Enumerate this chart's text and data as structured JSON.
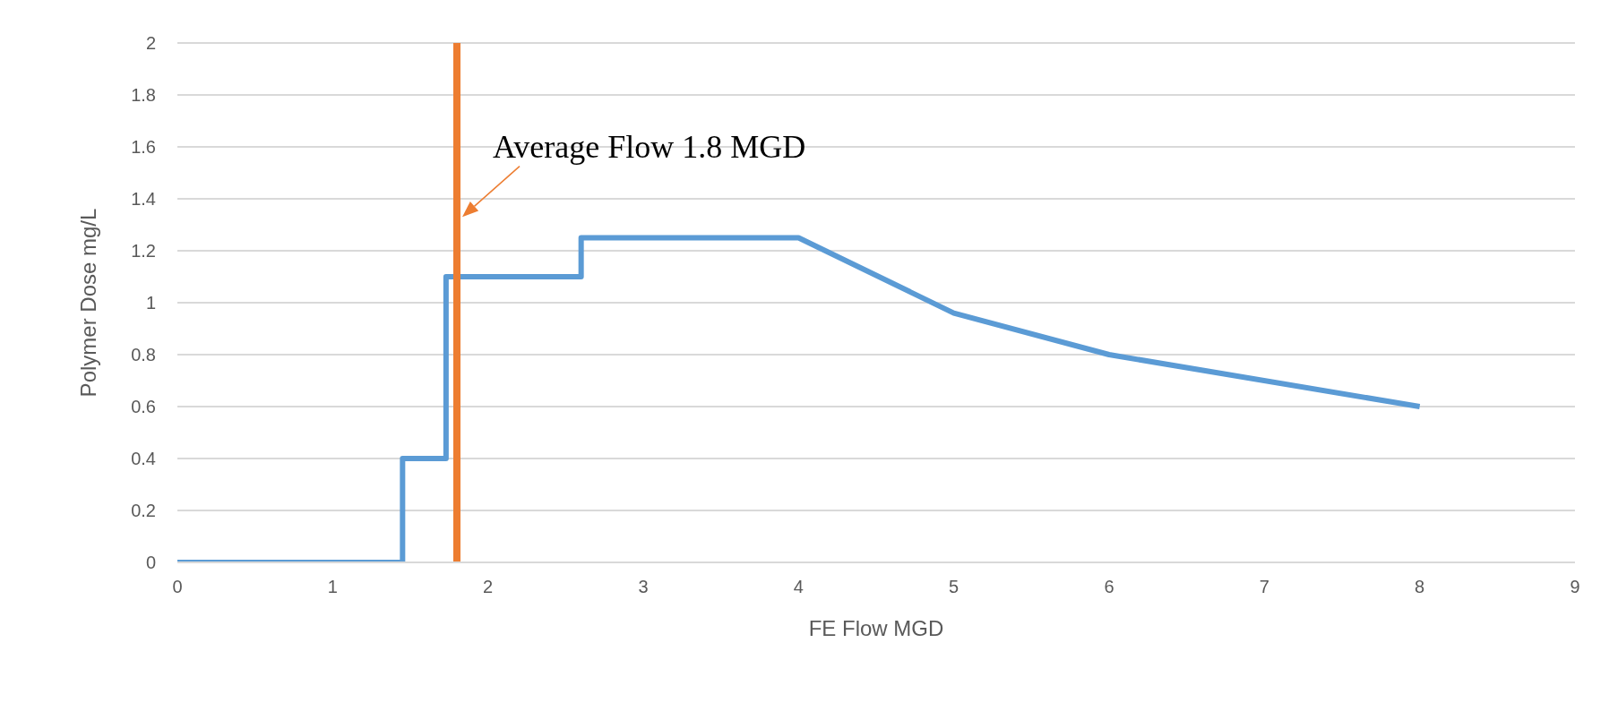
{
  "chart_data": {
    "type": "line",
    "xlabel": "FE Flow MGD",
    "ylabel": "Polymer Dose mg/L",
    "series": [
      {
        "color": "#5b9bd5",
        "x": [
          0,
          1.45,
          1.45,
          1.73,
          1.73,
          2.6,
          2.6,
          4,
          5,
          6,
          8
        ],
        "values": [
          0,
          0,
          0.4,
          0.4,
          1.1,
          1.1,
          1.25,
          1.25,
          0.96,
          0.8,
          0.6
        ]
      }
    ],
    "xlim": [
      0,
      9
    ],
    "xticks": [
      0,
      1,
      2,
      3,
      4,
      5,
      6,
      7,
      8,
      9
    ],
    "ylim": [
      0,
      2
    ],
    "yticks": [
      0,
      0.2,
      0.4,
      0.6,
      0.8,
      1,
      1.2,
      1.4,
      1.6,
      1.8,
      2
    ],
    "grid": "y",
    "line_style": "solid",
    "marker": "none",
    "ref_lines": [
      {
        "axis": "x",
        "value": 1.8,
        "label": "Average Flow 1.8 MGD",
        "color": "#ed7d31",
        "line_style": "solid"
      }
    ]
  }
}
